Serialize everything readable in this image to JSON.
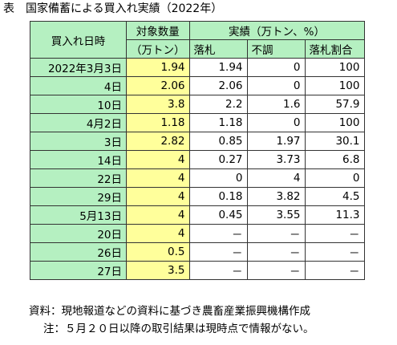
{
  "title": "表　国家備蓄による買入れ実績（2022年）",
  "headers": {
    "date": "買入れ日時",
    "qty_line1": "対象数量",
    "qty_line2": "（万トン）",
    "results": "実績（万トン、%）",
    "rakusatsu": "落札",
    "fucho": "不調",
    "ratio": "落札割合"
  },
  "rows": [
    {
      "date": "2022年3月3日",
      "qty": "1.94",
      "rakusatsu": "1.94",
      "fucho": "0",
      "ratio": "100"
    },
    {
      "date": "4日",
      "qty": "2.06",
      "rakusatsu": "2.06",
      "fucho": "0",
      "ratio": "100"
    },
    {
      "date": "10日",
      "qty": "3.8",
      "rakusatsu": "2.2",
      "fucho": "1.6",
      "ratio": "57.9"
    },
    {
      "date": "4月2日",
      "qty": "1.18",
      "rakusatsu": "1.18",
      "fucho": "0",
      "ratio": "100"
    },
    {
      "date": "3日",
      "qty": "2.82",
      "rakusatsu": "0.85",
      "fucho": "1.97",
      "ratio": "30.1"
    },
    {
      "date": "14日",
      "qty": "4",
      "rakusatsu": "0.27",
      "fucho": "3.73",
      "ratio": "6.8"
    },
    {
      "date": "22日",
      "qty": "4",
      "rakusatsu": "0",
      "fucho": "4",
      "ratio": "0"
    },
    {
      "date": "29日",
      "qty": "4",
      "rakusatsu": "0.18",
      "fucho": "3.82",
      "ratio": "4.5"
    },
    {
      "date": "5月13日",
      "qty": "4",
      "rakusatsu": "0.45",
      "fucho": "3.55",
      "ratio": "11.3"
    },
    {
      "date": "20日",
      "qty": "4",
      "rakusatsu": "－",
      "fucho": "－",
      "ratio": "－"
    },
    {
      "date": "26日",
      "qty": "0.5",
      "rakusatsu": "－",
      "fucho": "－",
      "ratio": "－"
    },
    {
      "date": "27日",
      "qty": "3.5",
      "rakusatsu": "－",
      "fucho": "－",
      "ratio": "－"
    }
  ],
  "source": "資料：現地報道などの資料に基づき農畜産業振興機構作成",
  "note": "注：５月２０日以降の取引結果は現時点で情報がない。",
  "colors": {
    "header_green": "#b5f0c1",
    "qty_yellow": "#ffff9b",
    "border": "#333333"
  }
}
